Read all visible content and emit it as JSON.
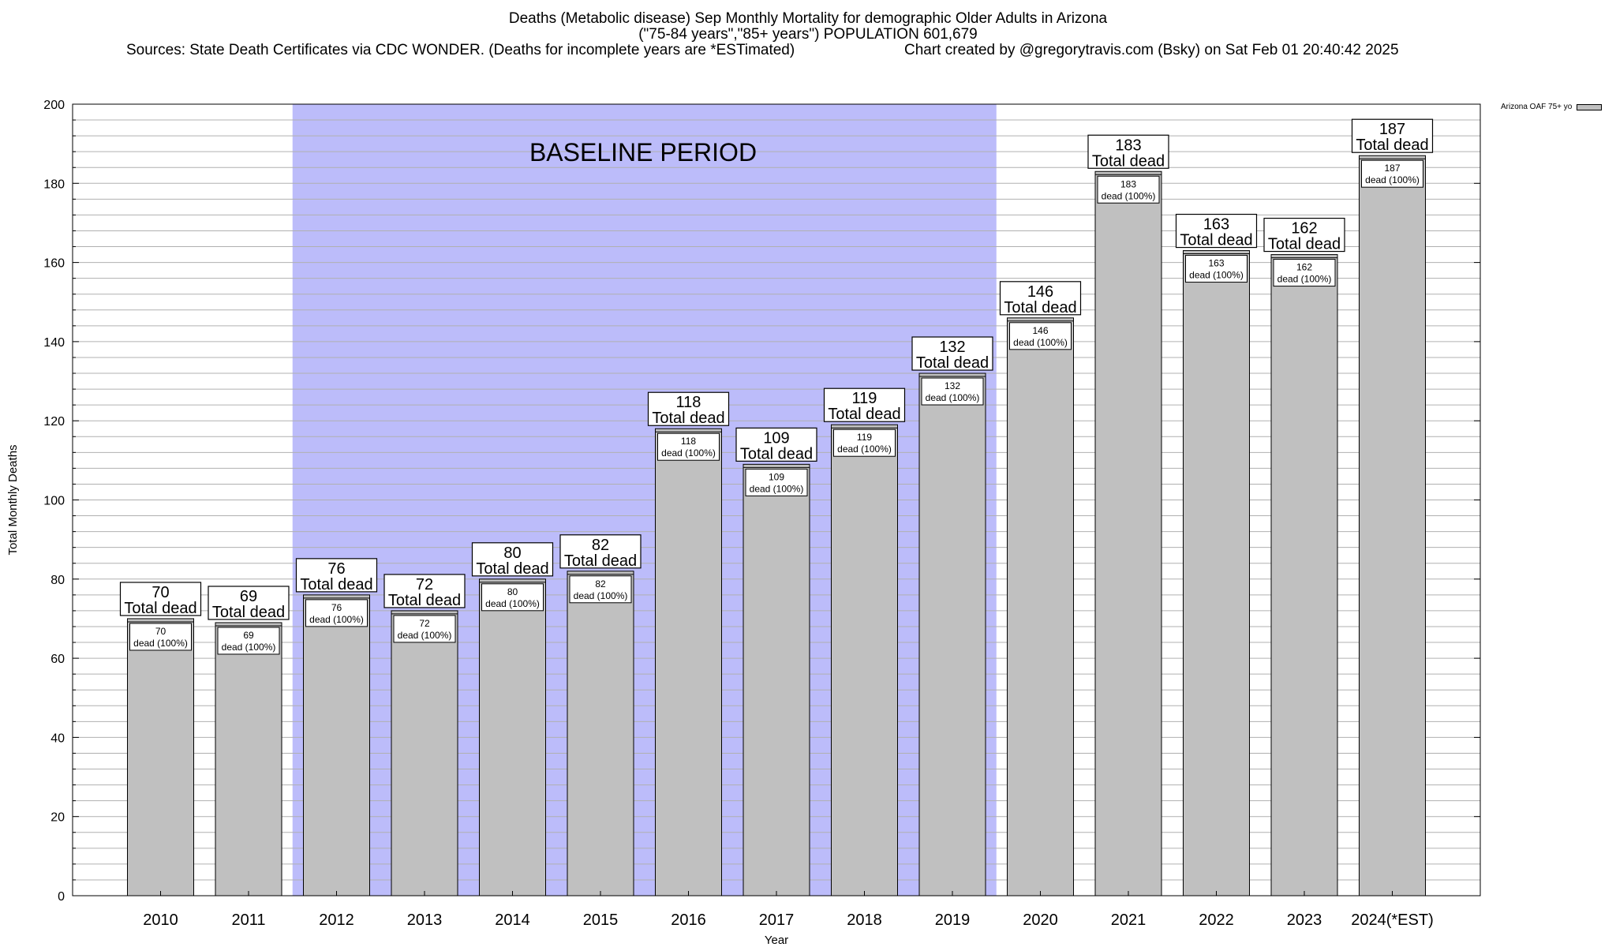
{
  "chart_data": {
    "type": "bar",
    "title": "Deaths (Metabolic disease) Sep Monthly Mortality for demographic Older Adults in Arizona",
    "subtitle": "(\"75-84 years\",\"85+ years\") POPULATION 601,679",
    "sources": "Sources: State Death Certificates via CDC WONDER. (Deaths for incomplete years are *ESTimated)",
    "credit": "Chart created by @gregorytravis.com (Bsky) on Sat Feb 01 20:40:42 2025",
    "xlabel": "Year",
    "ylabel": "Total Monthly Deaths",
    "ylim": [
      0,
      200
    ],
    "yticks": [
      0,
      20,
      40,
      60,
      80,
      100,
      120,
      140,
      160,
      180,
      200
    ],
    "categories": [
      "2010",
      "2011",
      "2012",
      "2013",
      "2014",
      "2015",
      "2016",
      "2017",
      "2018",
      "2019",
      "2020",
      "2021",
      "2022",
      "2023",
      "2024(*EST)"
    ],
    "series": [
      {
        "name": "Arizona OAF 75+ yo",
        "values": [
          70,
          69,
          76,
          72,
          80,
          82,
          118,
          109,
          119,
          132,
          146,
          183,
          163,
          162,
          187
        ]
      }
    ],
    "total_label_suffix": "Total dead",
    "inner_label_suffix": "dead (100%)",
    "baseline": {
      "label": "BASELINE PERIOD",
      "from": "2012",
      "to": "2019"
    },
    "grid": true,
    "legend_position": "top-right",
    "colors": {
      "bar": "#c0c0c0",
      "baseline": "#bcbcfa",
      "grid": "#b0b0b0"
    }
  }
}
